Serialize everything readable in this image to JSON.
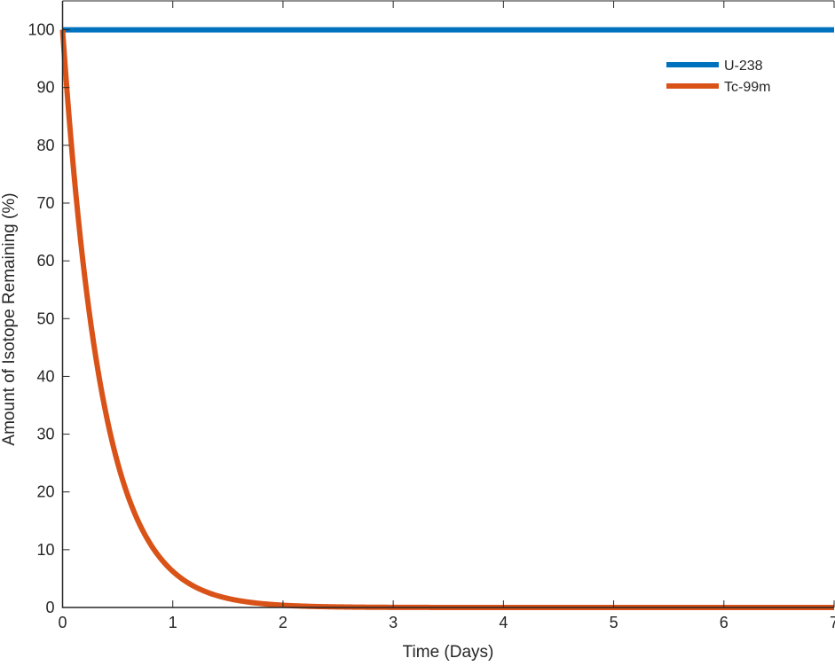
{
  "chart_data": {
    "type": "line",
    "title": "",
    "xlabel": "Time (Days)",
    "ylabel": "Amount of Isotope Remaining (%)",
    "xlim": [
      0,
      7
    ],
    "ylim": [
      0,
      105
    ],
    "xticks": [
      0,
      1,
      2,
      3,
      4,
      5,
      6,
      7
    ],
    "yticks": [
      0,
      10,
      20,
      30,
      40,
      50,
      60,
      70,
      80,
      90,
      100
    ],
    "grid": false,
    "legend_placement": "top-right",
    "series": [
      {
        "name": "U-238",
        "color": "#0072bd",
        "half_life_days": null,
        "x": [
          0,
          7
        ],
        "y": [
          100,
          100
        ]
      },
      {
        "name": "Tc-99m",
        "color": "#d95319",
        "half_life_days": 0.25,
        "x": [
          0,
          0.1,
          0.2,
          0.3,
          0.4,
          0.5,
          0.6,
          0.7,
          0.8,
          0.9,
          1,
          1.25,
          1.5,
          1.75,
          2,
          2.5,
          3,
          4,
          5,
          6,
          7
        ],
        "y": [
          100,
          75.8,
          57.4,
          43.5,
          33.0,
          25.0,
          18.9,
          14.4,
          10.9,
          8.25,
          6.25,
          3.13,
          1.56,
          0.78,
          0.39,
          0.1,
          0.02,
          0,
          0,
          0,
          0
        ]
      }
    ]
  }
}
